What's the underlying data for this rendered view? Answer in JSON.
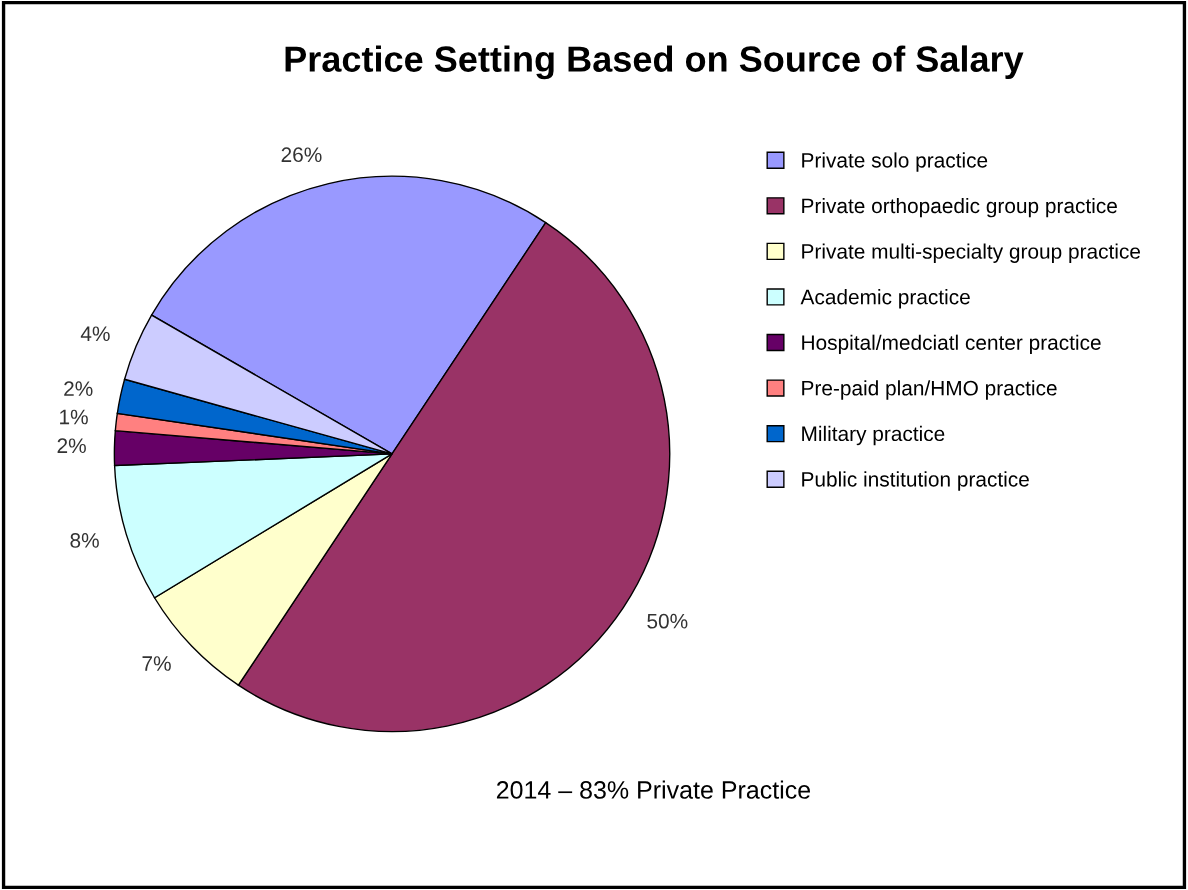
{
  "chart_data": {
    "type": "pie",
    "title": "Practice Setting Based on Source of Salary",
    "categories": [
      "Private solo practice",
      "Private orthopaedic group practice",
      "Private multi-specialty group practice",
      "Academic practice",
      "Hospital/medciatl center practice",
      "Pre-paid plan/HMO practice",
      "Military practice",
      "Public institution practice"
    ],
    "values": [
      26,
      50,
      7,
      8,
      2,
      1,
      2,
      4
    ],
    "value_labels": [
      "26%",
      "50%",
      "7%",
      "8%",
      "2%",
      "1%",
      "2%",
      "4%"
    ],
    "colors": [
      "#9999ff",
      "#993366",
      "#ffffcc",
      "#ccffff",
      "#660066",
      "#ff8080",
      "#0066cc",
      "#ccccff"
    ],
    "legend": "right",
    "annotations": [
      "2014 – 83% Private Practice"
    ]
  }
}
